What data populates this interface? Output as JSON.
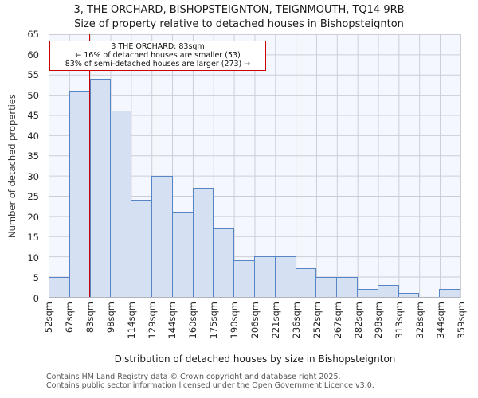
{
  "title": {
    "line1": "3, THE ORCHARD, BISHOPSTEIGNTON, TEIGNMOUTH, TQ14 9RB",
    "line2": "Size of property relative to detached houses in Bishopsteignton"
  },
  "annotation": {
    "line1": "3 THE ORCHARD: 83sqm",
    "line2": "← 16% of detached houses are smaller (53)",
    "line3": "83% of semi-detached houses are larger (273) →"
  },
  "axes": {
    "y_title": "Number of detached properties",
    "x_title": "Distribution of detached houses by size in Bishopsteignton"
  },
  "footer": {
    "line1": "Contains HM Land Registry data © Crown copyright and database right 2025.",
    "line2": "Contains public sector information licensed under the Open Government Licence v3.0."
  },
  "chart_data": {
    "type": "bar",
    "title": "3, THE ORCHARD, BISHOPSTEIGNTON, TEIGNMOUTH, TQ14 9RB",
    "subtitle": "Size of property relative to detached houses in Bishopsteignton",
    "xlabel": "Distribution of detached houses by size in Bishopsteignton",
    "ylabel": "Number of detached properties",
    "bin_edge_labels": [
      "52sqm",
      "67sqm",
      "83sqm",
      "98sqm",
      "114sqm",
      "129sqm",
      "144sqm",
      "160sqm",
      "175sqm",
      "190sqm",
      "206sqm",
      "221sqm",
      "236sqm",
      "252sqm",
      "267sqm",
      "282sqm",
      "298sqm",
      "313sqm",
      "328sqm",
      "344sqm",
      "359sqm"
    ],
    "values": [
      5,
      51,
      54,
      46,
      24,
      30,
      21,
      27,
      17,
      9,
      10,
      10,
      7,
      5,
      5,
      2,
      3,
      1,
      0,
      2
    ],
    "ylim": [
      0,
      65
    ],
    "ytick_step": 5,
    "grid": true,
    "marker": {
      "label": "83sqm",
      "bin_index": 2,
      "color": "#cc0000"
    },
    "colors": {
      "bar_fill": "#d5e1f3",
      "bar_edge": "#5585c5",
      "marker_line": "#cc0000",
      "plot_background": "#f4f7fd",
      "gridline": "#ccced6"
    }
  }
}
